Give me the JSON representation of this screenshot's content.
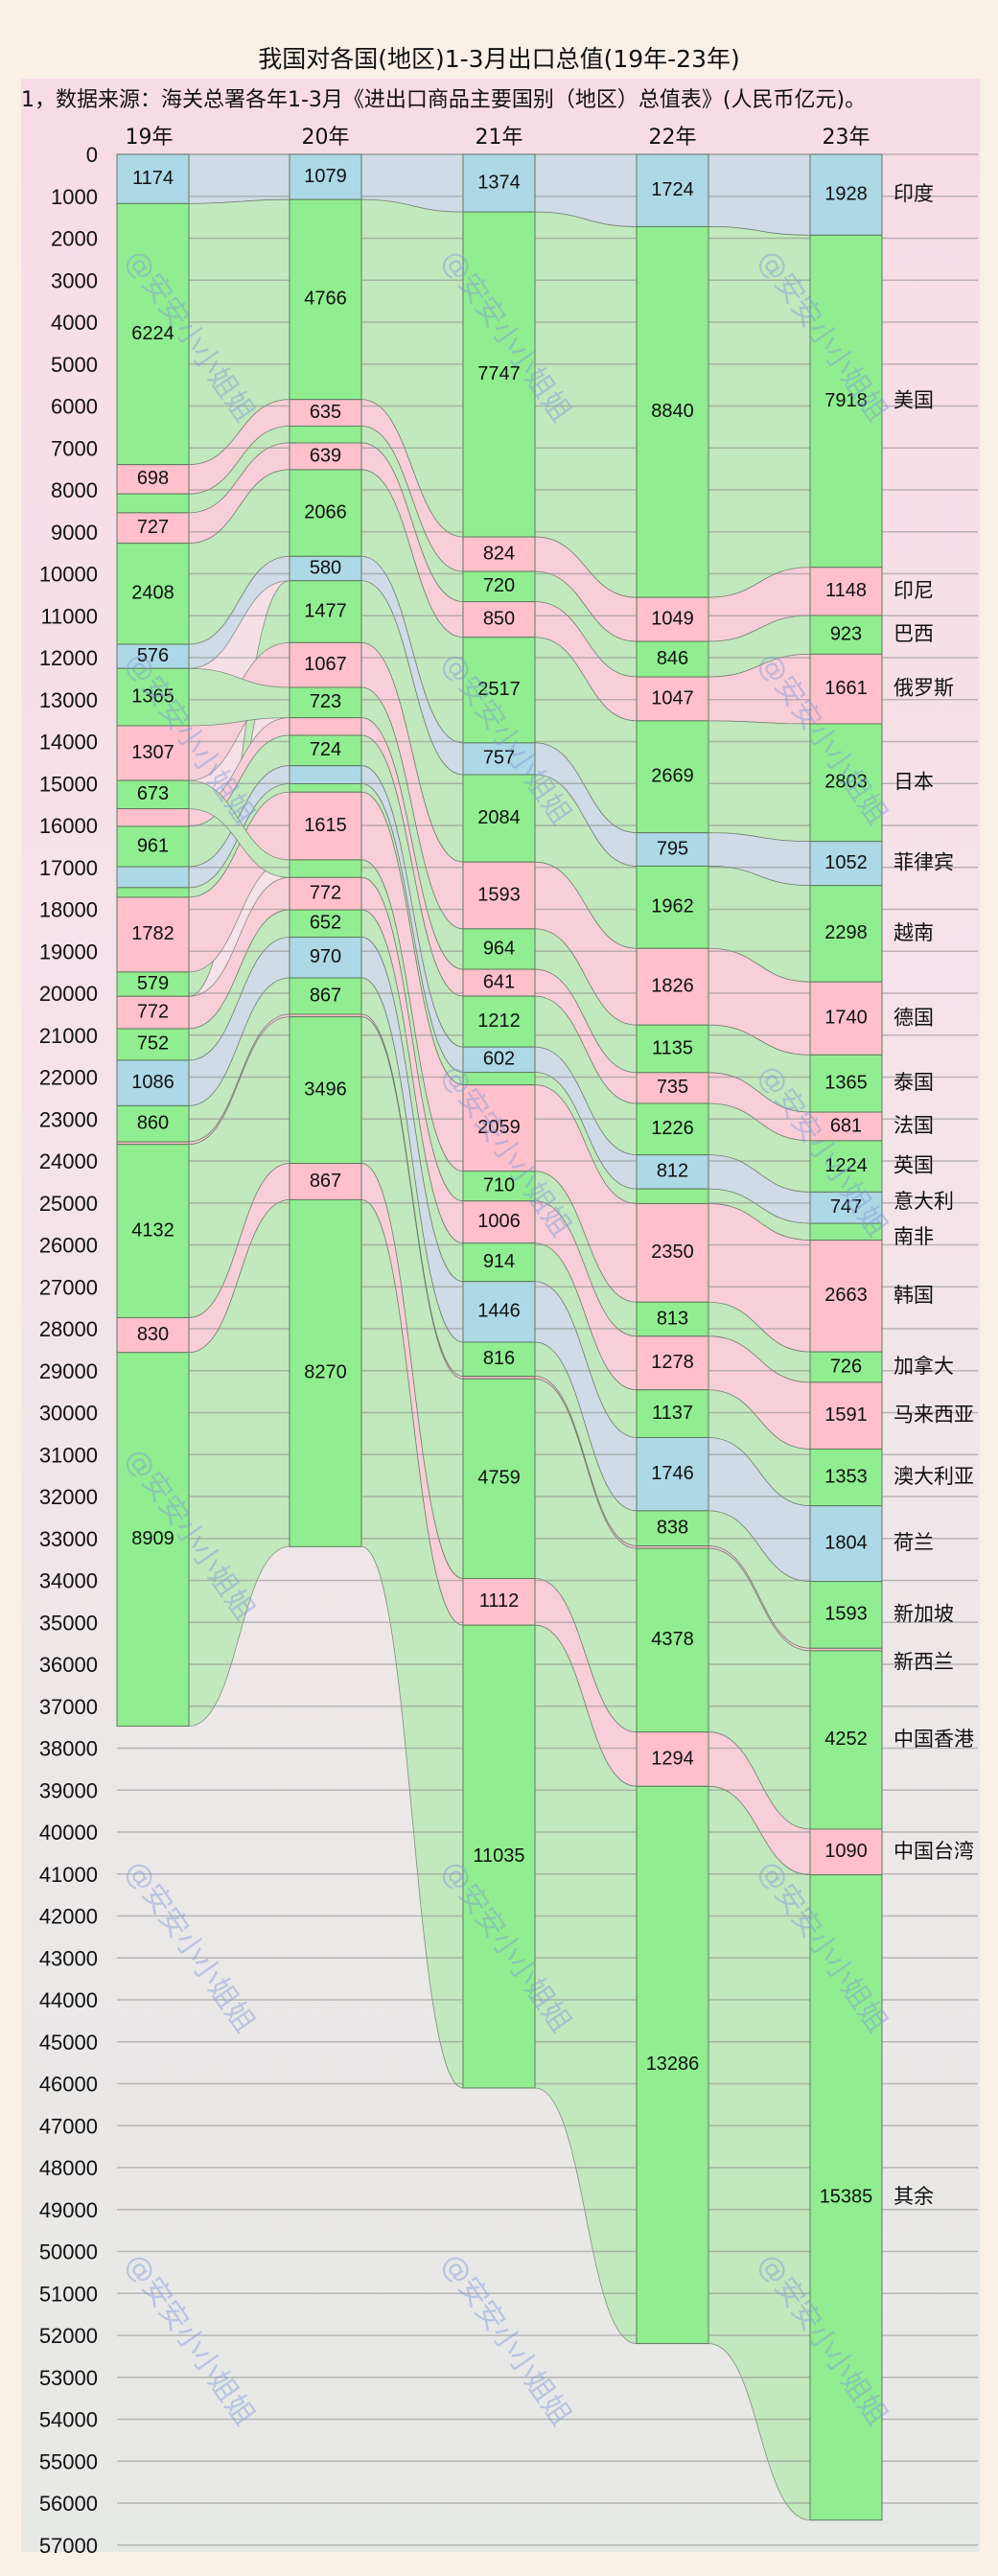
{
  "title": "我国对各国(地区)1-3月出口总值(19年-23年)",
  "source_note": "1，数据来源：海关总署各年1-3月《进出口商品主要国别（地区）总值表》(人民币亿元)。",
  "watermark": "@安安小小姐姐",
  "colors": {
    "green": "#90ee90",
    "pink": "#ffc0cb",
    "blue": "#add8e6",
    "green_flow": "#c2e8bd",
    "pink_flow": "#f8cfd8",
    "blue_flow": "#cfdbe6",
    "grid": "#8a8a8a",
    "border": "#6e8a6e"
  },
  "chart_data": {
    "type": "sankey-stacked-bar",
    "title": "我国对各国(地区)1-3月出口总值(19年-23年)",
    "unit": "人民币亿元",
    "ylim": [
      0,
      57000
    ],
    "yticks": [
      0,
      1000,
      2000,
      3000,
      4000,
      5000,
      6000,
      7000,
      8000,
      9000,
      10000,
      11000,
      12000,
      13000,
      14000,
      15000,
      16000,
      17000,
      18000,
      19000,
      20000,
      21000,
      22000,
      23000,
      24000,
      25000,
      26000,
      27000,
      28000,
      29000,
      30000,
      31000,
      32000,
      33000,
      34000,
      35000,
      36000,
      37000,
      38000,
      39000,
      40000,
      41000,
      42000,
      43000,
      44000,
      45000,
      46000,
      47000,
      48000,
      49000,
      50000,
      51000,
      52000,
      53000,
      54000,
      55000,
      56000,
      57000
    ],
    "categories": [
      "19年",
      "20年",
      "21年",
      "22年",
      "23年"
    ],
    "countries": [
      {
        "name": "印度",
        "color": "blue"
      },
      {
        "name": "美国",
        "color": "green"
      },
      {
        "name": "印尼",
        "color": "pink"
      },
      {
        "name": "巴西",
        "color": "green"
      },
      {
        "name": "俄罗斯",
        "color": "pink"
      },
      {
        "name": "日本",
        "color": "green"
      },
      {
        "name": "菲律宾",
        "color": "blue"
      },
      {
        "name": "越南",
        "color": "green"
      },
      {
        "name": "德国",
        "color": "pink"
      },
      {
        "name": "泰国",
        "color": "green"
      },
      {
        "name": "法国",
        "color": "pink"
      },
      {
        "name": "英国",
        "color": "green"
      },
      {
        "name": "意大利",
        "color": "blue"
      },
      {
        "name": "南非",
        "color": "green"
      },
      {
        "name": "韩国",
        "color": "pink"
      },
      {
        "name": "加拿大",
        "color": "green"
      },
      {
        "name": "马来西亚",
        "color": "pink"
      },
      {
        "name": "澳大利亚",
        "color": "green"
      },
      {
        "name": "荷兰",
        "color": "blue"
      },
      {
        "name": "新加坡",
        "color": "green"
      },
      {
        "name": "新西兰",
        "color": "pink"
      },
      {
        "name": "中国香港",
        "color": "green"
      },
      {
        "name": "中国台湾",
        "color": "pink"
      },
      {
        "name": "其余",
        "color": "green"
      }
    ],
    "stacks": {
      "19年": [
        [
          "印度",
          1174,
          true
        ],
        [
          "美国",
          6224,
          true
        ],
        [
          "印尼",
          698,
          true
        ],
        [
          "巴西",
          450,
          false
        ],
        [
          "俄罗斯",
          727,
          true
        ],
        [
          "日本",
          2408,
          true
        ],
        [
          "菲律宾",
          576,
          true
        ],
        [
          "泰国",
          1365,
          true
        ],
        [
          "德国",
          1307,
          true
        ],
        [
          "加拿大",
          673,
          true
        ],
        [
          "法国",
          420,
          false
        ],
        [
          "英国",
          961,
          true
        ],
        [
          "意大利",
          500,
          false
        ],
        [
          "南非",
          230,
          false
        ],
        [
          "韩国",
          1782,
          true
        ],
        [
          "越南",
          579,
          true
        ],
        [
          "马来西亚",
          772,
          true
        ],
        [
          "澳大利亚",
          752,
          true
        ],
        [
          "荷兰",
          1086,
          true
        ],
        [
          "新加坡",
          860,
          true
        ],
        [
          "新西兰",
          60,
          false
        ],
        [
          "中国香港",
          4132,
          true
        ],
        [
          "中国台湾",
          830,
          true
        ],
        [
          "其余",
          8909,
          true
        ]
      ],
      "20年": [
        [
          "印度",
          1079,
          true
        ],
        [
          "美国",
          4766,
          true
        ],
        [
          "印尼",
          635,
          true
        ],
        [
          "巴西",
          400,
          false
        ],
        [
          "俄罗斯",
          639,
          true
        ],
        [
          "日本",
          2066,
          true
        ],
        [
          "菲律宾",
          580,
          true
        ],
        [
          "越南",
          1477,
          true
        ],
        [
          "德国",
          1067,
          true
        ],
        [
          "泰国",
          723,
          true
        ],
        [
          "法国",
          420,
          false
        ],
        [
          "英国",
          724,
          true
        ],
        [
          "意大利",
          430,
          false
        ],
        [
          "南非",
          200,
          false
        ],
        [
          "韩国",
          1615,
          true
        ],
        [
          "加拿大",
          420,
          false
        ],
        [
          "马来西亚",
          772,
          true
        ],
        [
          "澳大利亚",
          652,
          true
        ],
        [
          "荷兰",
          970,
          true
        ],
        [
          "新加坡",
          867,
          true
        ],
        [
          "新西兰",
          60,
          false
        ],
        [
          "中国香港",
          3496,
          true
        ],
        [
          "中国台湾",
          867,
          true
        ],
        [
          "其余",
          8270,
          true
        ]
      ],
      "21年": [
        [
          "印度",
          1374,
          true
        ],
        [
          "美国",
          7747,
          true
        ],
        [
          "印尼",
          824,
          true
        ],
        [
          "巴西",
          720,
          true
        ],
        [
          "俄罗斯",
          850,
          true
        ],
        [
          "日本",
          2517,
          true
        ],
        [
          "菲律宾",
          757,
          true
        ],
        [
          "越南",
          2084,
          true
        ],
        [
          "德国",
          1593,
          true
        ],
        [
          "泰国",
          964,
          true
        ],
        [
          "法国",
          641,
          true
        ],
        [
          "英国",
          1212,
          true
        ],
        [
          "意大利",
          602,
          true
        ],
        [
          "南非",
          300,
          false
        ],
        [
          "韩国",
          2059,
          true
        ],
        [
          "加拿大",
          710,
          true
        ],
        [
          "马来西亚",
          1006,
          true
        ],
        [
          "澳大利亚",
          914,
          true
        ],
        [
          "荷兰",
          1446,
          true
        ],
        [
          "新加坡",
          816,
          true
        ],
        [
          "新西兰",
          60,
          false
        ],
        [
          "中国香港",
          4759,
          true
        ],
        [
          "中国台湾",
          1112,
          true
        ],
        [
          "其余",
          11035,
          true
        ]
      ],
      "22年": [
        [
          "印度",
          1724,
          true
        ],
        [
          "美国",
          8840,
          true
        ],
        [
          "印尼",
          1049,
          true
        ],
        [
          "巴西",
          846,
          true
        ],
        [
          "俄罗斯",
          1047,
          true
        ],
        [
          "日本",
          2669,
          true
        ],
        [
          "菲律宾",
          795,
          true
        ],
        [
          "越南",
          1962,
          true
        ],
        [
          "德国",
          1826,
          true
        ],
        [
          "泰国",
          1135,
          true
        ],
        [
          "法国",
          735,
          true
        ],
        [
          "英国",
          1226,
          true
        ],
        [
          "意大利",
          812,
          true
        ],
        [
          "南非",
          350,
          false
        ],
        [
          "韩国",
          2350,
          true
        ],
        [
          "加拿大",
          813,
          true
        ],
        [
          "马来西亚",
          1278,
          true
        ],
        [
          "澳大利亚",
          1137,
          true
        ],
        [
          "荷兰",
          1746,
          true
        ],
        [
          "新加坡",
          838,
          true
        ],
        [
          "新西兰",
          60,
          false
        ],
        [
          "中国香港",
          4378,
          true
        ],
        [
          "中国台湾",
          1294,
          true
        ],
        [
          "其余",
          13286,
          true
        ]
      ],
      "23年": [
        [
          "印度",
          1928,
          true
        ],
        [
          "美国",
          7918,
          true
        ],
        [
          "印尼",
          1148,
          true
        ],
        [
          "巴西",
          923,
          true
        ],
        [
          "俄罗斯",
          1661,
          true
        ],
        [
          "日本",
          2803,
          true
        ],
        [
          "菲律宾",
          1052,
          true
        ],
        [
          "越南",
          2298,
          true
        ],
        [
          "德国",
          1740,
          true
        ],
        [
          "泰国",
          1365,
          true
        ],
        [
          "法国",
          681,
          true
        ],
        [
          "英国",
          1224,
          true
        ],
        [
          "意大利",
          747,
          true
        ],
        [
          "南非",
          400,
          false
        ],
        [
          "韩国",
          2663,
          true
        ],
        [
          "加拿大",
          726,
          true
        ],
        [
          "马来西亚",
          1591,
          true
        ],
        [
          "澳大利亚",
          1353,
          true
        ],
        [
          "荷兰",
          1804,
          true
        ],
        [
          "新加坡",
          1593,
          true
        ],
        [
          "新西兰",
          60,
          false
        ],
        [
          "中国香港",
          4252,
          true
        ],
        [
          "中国台湾",
          1090,
          true
        ],
        [
          "其余",
          15385,
          true
        ]
      ]
    },
    "right_labels": [
      "印度",
      "美国",
      "印尼",
      "巴西",
      "俄罗斯",
      "日本",
      "菲律宾",
      "越南",
      "德国",
      "泰国",
      "法国",
      "英国",
      "意大利",
      "南非",
      "韩国",
      "加拿大",
      "马来西亚",
      "澳大利亚",
      "荷兰",
      "新加坡",
      "新西兰",
      "中国香港",
      "中国台湾",
      "其余"
    ]
  }
}
